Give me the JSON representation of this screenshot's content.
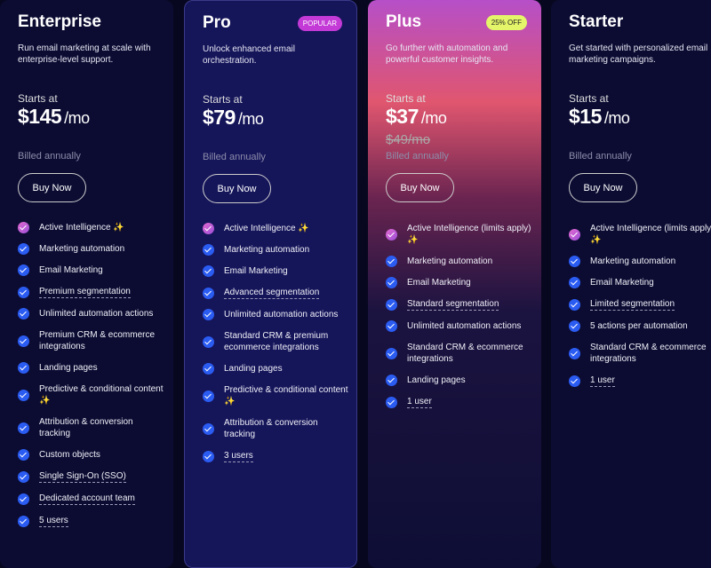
{
  "plans": [
    {
      "name": "Enterprise",
      "description": "Run email marketing at scale with enterprise-level support.",
      "starts_at": "Starts at",
      "price": "$145",
      "per": "/mo",
      "billing": "Billed annually",
      "button": "Buy Now",
      "features": [
        {
          "text": "Active Intelligence ✨"
        },
        {
          "text": "Marketing automation"
        },
        {
          "text": "Email Marketing"
        },
        {
          "text": "Premium segmentation",
          "underline": true
        },
        {
          "text": "Unlimited automation actions"
        },
        {
          "text": "Premium CRM & ecommerce integrations"
        },
        {
          "text": "Landing pages"
        },
        {
          "text": "Predictive & conditional content ✨"
        },
        {
          "text": "Attribution & conversion tracking"
        },
        {
          "text": "Custom objects"
        },
        {
          "text": "Single Sign-On (SSO)",
          "underline": true
        },
        {
          "text": "Dedicated account team",
          "underline": true
        },
        {
          "text": "5 users",
          "underline": true
        }
      ]
    },
    {
      "name": "Pro",
      "badge": "POPULAR",
      "description": "Unlock enhanced email orchestration.",
      "starts_at": "Starts at",
      "price": "$79",
      "per": "/mo",
      "billing": "Billed annually",
      "button": "Buy Now",
      "features": [
        {
          "text": "Active Intelligence ✨"
        },
        {
          "text": "Marketing automation"
        },
        {
          "text": "Email Marketing"
        },
        {
          "text": "Advanced segmentation",
          "underline": true
        },
        {
          "text": "Unlimited automation actions"
        },
        {
          "text": "Standard CRM & premium ecommerce integrations"
        },
        {
          "text": "Landing pages"
        },
        {
          "text": "Predictive & conditional content ✨"
        },
        {
          "text": "Attribution & conversion tracking"
        },
        {
          "text": "3 users",
          "underline": true
        }
      ]
    },
    {
      "name": "Plus",
      "badge": "25% OFF",
      "description": "Go further with automation and powerful customer insights.",
      "starts_at": "Starts at",
      "price": "$37",
      "per": "/mo",
      "old_price": "$49/mo",
      "billing": "Billed annually",
      "button": "Buy Now",
      "features": [
        {
          "text": "Active Intelligence (limits apply) ✨"
        },
        {
          "text": "Marketing automation"
        },
        {
          "text": "Email Marketing"
        },
        {
          "text": "Standard segmentation",
          "underline": true
        },
        {
          "text": "Unlimited automation actions"
        },
        {
          "text": "Standard CRM & ecommerce integrations"
        },
        {
          "text": "Landing pages"
        },
        {
          "text": "1 user",
          "underline": true
        }
      ]
    },
    {
      "name": "Starter",
      "description": "Get started with personalized email marketing campaigns.",
      "starts_at": "Starts at",
      "price": "$15",
      "per": "/mo",
      "billing": "Billed annually",
      "button": "Buy Now",
      "features": [
        {
          "text": "Active Intelligence (limits apply) ✨"
        },
        {
          "text": "Marketing automation"
        },
        {
          "text": "Email Marketing"
        },
        {
          "text": "Limited segmentation",
          "underline": true
        },
        {
          "text": "5 actions per automation"
        },
        {
          "text": "Standard CRM & ecommerce integrations"
        },
        {
          "text": "1 user",
          "underline": true
        }
      ]
    }
  ]
}
